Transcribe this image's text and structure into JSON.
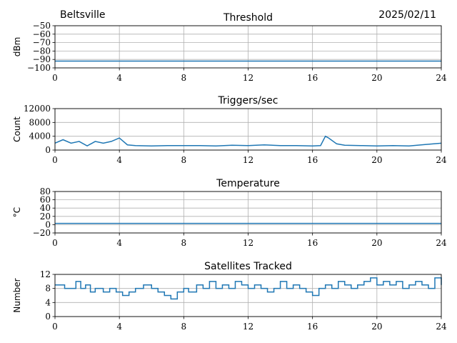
{
  "header": {
    "location": "Beltsville",
    "date": "2025/02/11"
  },
  "chart_data": [
    {
      "type": "line",
      "title": "Threshold",
      "ylabel": "dBm",
      "xlabel": "",
      "xlim": [
        0,
        24
      ],
      "ylim": [
        -100,
        -50
      ],
      "xticks": [
        0,
        4,
        8,
        12,
        16,
        20,
        24
      ],
      "yticks": [
        -100,
        -90,
        -80,
        -70,
        -60,
        -50
      ],
      "grid": true,
      "color": "#1f77b4",
      "series": [
        {
          "x": [
            0,
            1,
            2,
            3,
            4,
            5,
            6,
            7,
            8,
            9,
            10,
            11,
            12,
            13,
            14,
            15,
            16,
            17,
            18,
            19,
            20,
            21,
            22,
            23,
            24
          ],
          "y": [
            -92,
            -92,
            -92,
            -92,
            -92,
            -92,
            -92,
            -92,
            -92,
            -92,
            -92,
            -92,
            -92,
            -92,
            -92,
            -92,
            -92,
            -92,
            -92,
            -92,
            -92,
            -92,
            -92,
            -92,
            -92
          ]
        }
      ]
    },
    {
      "type": "line",
      "title": "Triggers/sec",
      "ylabel": "Count",
      "xlabel": "",
      "xlim": [
        0,
        24
      ],
      "ylim": [
        0,
        12000
      ],
      "xticks": [
        0,
        4,
        8,
        12,
        16,
        20,
        24
      ],
      "yticks": [
        0,
        4000,
        8000,
        12000
      ],
      "grid": true,
      "color": "#1f77b4",
      "series": [
        {
          "x": [
            0,
            0.5,
            1,
            1.5,
            2,
            2.5,
            3,
            3.5,
            4,
            4.5,
            5,
            6,
            7,
            8,
            9,
            10,
            11,
            12,
            13,
            14,
            15,
            16,
            16.5,
            16.8,
            17,
            17.5,
            18,
            19,
            20,
            21,
            22,
            23,
            24
          ],
          "y": [
            2000,
            3000,
            2000,
            2500,
            1200,
            2500,
            2000,
            2500,
            3500,
            1500,
            1300,
            1200,
            1300,
            1300,
            1300,
            1200,
            1400,
            1300,
            1500,
            1300,
            1300,
            1200,
            1300,
            4000,
            3500,
            1800,
            1400,
            1300,
            1200,
            1300,
            1200,
            1600,
            2000
          ]
        }
      ]
    },
    {
      "type": "line",
      "title": "Temperature",
      "ylabel": "°C",
      "xlabel": "",
      "xlim": [
        0,
        24
      ],
      "ylim": [
        -20,
        80
      ],
      "xticks": [
        0,
        4,
        8,
        12,
        16,
        20,
        24
      ],
      "yticks": [
        -20,
        0,
        20,
        40,
        60,
        80
      ],
      "grid": true,
      "color": "#1f77b4",
      "series": [
        {
          "x": [
            0,
            24
          ],
          "y": [
            3,
            3
          ]
        }
      ]
    },
    {
      "type": "line",
      "title": "Satellites Tracked",
      "ylabel": "Number",
      "xlabel": "",
      "xlim": [
        0,
        24
      ],
      "ylim": [
        0,
        12
      ],
      "xticks": [
        0,
        4,
        8,
        12,
        16,
        20,
        24
      ],
      "yticks": [
        0,
        4,
        8,
        12
      ],
      "grid": true,
      "color": "#1f77b4",
      "step": true,
      "series": [
        {
          "x": [
            0,
            0.6,
            1.3,
            1.6,
            1.9,
            2.2,
            2.5,
            3.0,
            3.4,
            3.8,
            4.2,
            4.6,
            5.0,
            5.5,
            6.0,
            6.4,
            6.8,
            7.2,
            7.6,
            8.0,
            8.3,
            8.8,
            9.2,
            9.6,
            10.0,
            10.4,
            10.8,
            11.2,
            11.6,
            12.0,
            12.4,
            12.8,
            13.2,
            13.6,
            14.0,
            14.4,
            14.8,
            15.2,
            15.6,
            16.0,
            16.4,
            16.8,
            17.2,
            17.6,
            18.0,
            18.4,
            18.8,
            19.2,
            19.6,
            20.0,
            20.4,
            20.8,
            21.2,
            21.6,
            22.0,
            22.4,
            22.8,
            23.2,
            23.6,
            24.0
          ],
          "y": [
            9,
            8,
            10,
            8,
            9,
            7,
            8,
            7,
            8,
            7,
            6,
            7,
            8,
            9,
            8,
            7,
            6,
            5,
            7,
            8,
            7,
            9,
            8,
            10,
            8,
            9,
            8,
            10,
            9,
            8,
            9,
            8,
            7,
            8,
            10,
            8,
            9,
            8,
            7,
            6,
            8,
            9,
            8,
            10,
            9,
            8,
            9,
            10,
            11,
            9,
            10,
            9,
            10,
            8,
            9,
            10,
            9,
            8,
            11,
            9
          ]
        }
      ]
    }
  ]
}
